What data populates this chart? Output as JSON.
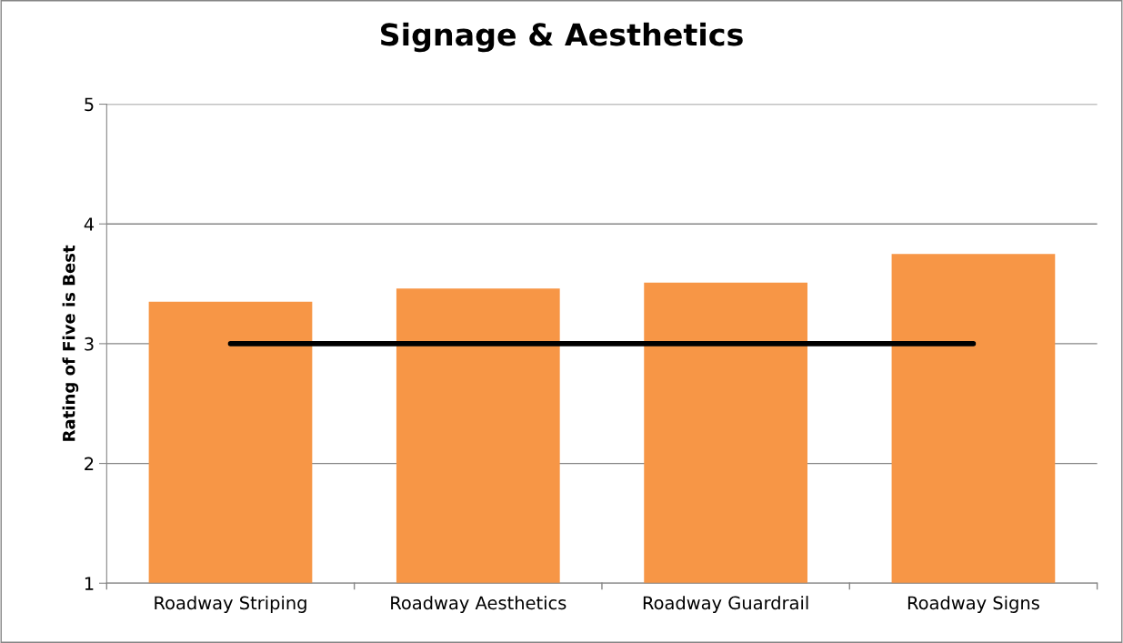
{
  "chart_data": {
    "type": "bar",
    "title": "Signage & Aesthetics",
    "ylabel": "Rating of Five is Best",
    "categories": [
      "Roadway Striping",
      "Roadway Aesthetics",
      "Roadway Guardrail",
      "Roadway Signs"
    ],
    "series": [
      {
        "color": "#f79646",
        "values": [
          3.35,
          3.46,
          3.51,
          3.75
        ]
      },
      {
        "type": "line",
        "color": "#000000",
        "values": [
          3,
          3,
          3,
          3
        ]
      }
    ],
    "ylim": [
      1,
      5
    ],
    "yticks": [
      1,
      2,
      3,
      4,
      5
    ],
    "grid": "y",
    "marker": "none",
    "line_style": "solid"
  }
}
